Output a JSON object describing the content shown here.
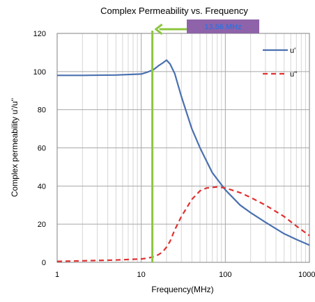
{
  "chart_data": {
    "type": "line",
    "title": "Complex Permeability vs. Frequency",
    "xlabel": "Frequency(MHz)",
    "ylabel": "Complex permeability u'/u''",
    "x_scale": "log",
    "xlim": [
      1,
      1000
    ],
    "ylim": [
      0,
      120
    ],
    "grid": true,
    "legend_position": "top-right",
    "x_ticks": [
      1,
      10,
      100,
      1000
    ],
    "x_tick_labels": [
      "1",
      "10",
      "100",
      "1000"
    ],
    "y_ticks": [
      0,
      20,
      40,
      60,
      80,
      100,
      120
    ],
    "y_tick_labels": [
      "0",
      "20",
      "40",
      "60",
      "80",
      "100",
      "120"
    ],
    "series": [
      {
        "name": "u'",
        "color": "#4a70b0",
        "style": "solid",
        "x": [
          1,
          2,
          5,
          10,
          12,
          14,
          16,
          18,
          20,
          22,
          25,
          30,
          40,
          50,
          70,
          100,
          150,
          200,
          300,
          500,
          700,
          1000
        ],
        "y": [
          98,
          98,
          98.2,
          98.7,
          99.8,
          101,
          103,
          104.5,
          106,
          104,
          99,
          87,
          70,
          60,
          47,
          38,
          30,
          26,
          21,
          15,
          12,
          9
        ]
      },
      {
        "name": "u''",
        "color": "#e03030",
        "style": "dashed",
        "x": [
          1,
          2,
          5,
          10,
          12,
          14,
          16,
          18,
          20,
          22,
          25,
          30,
          40,
          50,
          60,
          80,
          100,
          150,
          200,
          300,
          500,
          700,
          1000
        ],
        "y": [
          0.5,
          0.8,
          1.2,
          1.8,
          2.2,
          3,
          4,
          5.5,
          8,
          11,
          17,
          24,
          33,
          37.5,
          39,
          39.5,
          39,
          36.5,
          34,
          30,
          24,
          19,
          14
        ]
      }
    ],
    "annotation": {
      "text": "13.56 MHz",
      "x": 13.56,
      "line_color": "#8cc63f",
      "box_color": "#8e63a9",
      "text_color": "#3a6fd8"
    }
  }
}
